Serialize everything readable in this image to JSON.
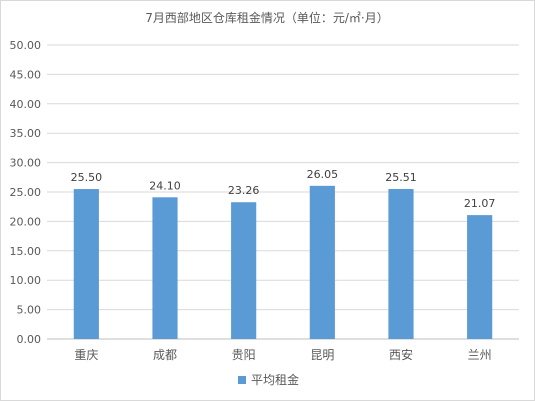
{
  "chart_data": {
    "type": "bar",
    "title": "7月西部地区仓库租金情况（单位：元/㎡·月）",
    "categories": [
      "重庆",
      "成都",
      "贵阳",
      "昆明",
      "西安",
      "兰州"
    ],
    "series": [
      {
        "name": "平均租金",
        "values": [
          25.5,
          24.1,
          23.26,
          26.05,
          25.51,
          21.07
        ],
        "labels": [
          "25.50",
          "24.10",
          "23.26",
          "26.05",
          "25.51",
          "21.07"
        ],
        "color": "#5b9bd5"
      }
    ],
    "yticks": [
      "0.00",
      "5.00",
      "10.00",
      "15.00",
      "20.00",
      "25.00",
      "30.00",
      "35.00",
      "40.00",
      "45.00",
      "50.00"
    ],
    "ylim": [
      0,
      50
    ],
    "grid": true,
    "legend_position": "bottom"
  }
}
